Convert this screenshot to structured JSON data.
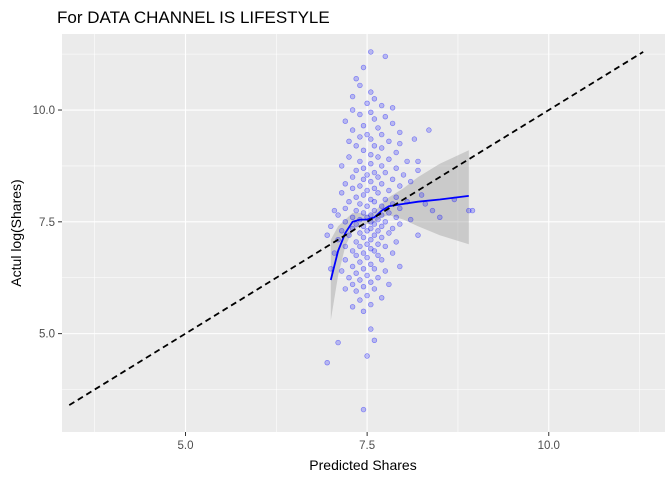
{
  "chart_data": {
    "type": "scatter",
    "title": "For DATA CHANNEL IS LIFESTYLE",
    "xlabel": "Predicted Shares",
    "ylabel": "Actul log(Shares)",
    "xlim": [
      3.3,
      11.6
    ],
    "ylim": [
      2.8,
      11.7
    ],
    "x_ticks": [
      5.0,
      7.5,
      10.0
    ],
    "x_tick_labels": [
      "5.0",
      "7.5",
      "10.0"
    ],
    "y_ticks": [
      5.0,
      7.5,
      10.0
    ],
    "y_tick_labels": [
      "5.0",
      "7.5",
      "10.0"
    ],
    "grid": true,
    "legend": "none",
    "colors": {
      "panel_background": "#ebebeb",
      "grid": "#ffffff",
      "points": "#0000ff",
      "smooth_line": "#0000ff",
      "confidence_band": "#999999",
      "reference_line": "#000000"
    },
    "reference_line": {
      "style": "dashed",
      "x": [
        3.4,
        11.3
      ],
      "y": [
        3.4,
        11.3
      ]
    },
    "smooth": {
      "x": [
        7.0,
        7.1,
        7.2,
        7.3,
        7.4,
        7.5,
        7.6,
        7.7,
        7.8,
        8.0,
        8.2,
        8.5,
        8.9
      ],
      "y": [
        6.2,
        6.85,
        7.25,
        7.5,
        7.55,
        7.55,
        7.6,
        7.75,
        7.85,
        7.9,
        7.95,
        8.0,
        8.08
      ],
      "se_lower": [
        5.3,
        6.3,
        6.95,
        7.3,
        7.4,
        7.45,
        7.48,
        7.6,
        7.65,
        7.55,
        7.4,
        7.2,
        7.0
      ],
      "se_upper": [
        7.1,
        7.4,
        7.55,
        7.7,
        7.7,
        7.65,
        7.72,
        7.9,
        8.05,
        8.25,
        8.5,
        8.8,
        9.1
      ]
    },
    "points": [
      [
        7.55,
        11.3
      ],
      [
        7.75,
        11.2
      ],
      [
        7.45,
        10.95
      ],
      [
        7.35,
        10.7
      ],
      [
        7.4,
        10.55
      ],
      [
        7.55,
        10.4
      ],
      [
        7.3,
        10.3
      ],
      [
        7.6,
        10.25
      ],
      [
        7.5,
        10.15
      ],
      [
        7.7,
        10.1
      ],
      [
        7.85,
        10.05
      ],
      [
        7.3,
        10.0
      ],
      [
        7.55,
        9.95
      ],
      [
        7.4,
        9.9
      ],
      [
        7.75,
        9.85
      ],
      [
        7.6,
        9.8
      ],
      [
        7.2,
        9.75
      ],
      [
        7.85,
        9.7
      ],
      [
        7.45,
        9.65
      ],
      [
        7.65,
        9.6
      ],
      [
        8.35,
        9.55
      ],
      [
        7.3,
        9.55
      ],
      [
        7.95,
        9.5
      ],
      [
        7.5,
        9.45
      ],
      [
        7.7,
        9.45
      ],
      [
        7.4,
        9.4
      ],
      [
        8.15,
        9.35
      ],
      [
        7.55,
        9.35
      ],
      [
        7.8,
        9.3
      ],
      [
        7.25,
        9.3
      ],
      [
        7.95,
        9.25
      ],
      [
        7.6,
        9.2
      ],
      [
        7.35,
        9.2
      ],
      [
        7.7,
        9.15
      ],
      [
        7.45,
        9.1
      ],
      [
        7.9,
        9.05
      ],
      [
        7.55,
        9.0
      ],
      [
        7.25,
        8.95
      ],
      [
        7.65,
        8.95
      ],
      [
        7.8,
        8.9
      ],
      [
        8.05,
        8.85
      ],
      [
        7.4,
        8.85
      ],
      [
        7.55,
        8.8
      ],
      [
        7.15,
        8.75
      ],
      [
        7.7,
        8.75
      ],
      [
        7.9,
        8.7
      ],
      [
        7.45,
        8.7
      ],
      [
        8.2,
        8.65
      ],
      [
        7.35,
        8.65
      ],
      [
        7.6,
        8.6
      ],
      [
        7.75,
        8.6
      ],
      [
        7.5,
        8.55
      ],
      [
        8.0,
        8.55
      ],
      [
        7.3,
        8.5
      ],
      [
        7.65,
        8.5
      ],
      [
        7.85,
        8.45
      ],
      [
        7.45,
        8.45
      ],
      [
        7.55,
        8.4
      ],
      [
        8.1,
        8.4
      ],
      [
        7.2,
        8.35
      ],
      [
        7.7,
        8.35
      ],
      [
        7.4,
        8.3
      ],
      [
        7.95,
        8.3
      ],
      [
        7.6,
        8.25
      ],
      [
        7.3,
        8.25
      ],
      [
        7.8,
        8.2
      ],
      [
        7.5,
        8.2
      ],
      [
        7.15,
        8.15
      ],
      [
        7.65,
        8.15
      ],
      [
        8.25,
        8.1
      ],
      [
        7.45,
        8.1
      ],
      [
        7.9,
        8.05
      ],
      [
        7.35,
        8.05
      ],
      [
        7.55,
        8.0
      ],
      [
        7.75,
        8.0
      ],
      [
        7.25,
        7.95
      ],
      [
        7.6,
        7.95
      ],
      [
        8.05,
        7.95
      ],
      [
        7.4,
        7.9
      ],
      [
        7.85,
        7.9
      ],
      [
        7.5,
        7.85
      ],
      [
        7.7,
        7.85
      ],
      [
        7.2,
        7.8
      ],
      [
        7.95,
        7.8
      ],
      [
        7.35,
        7.75
      ],
      [
        7.6,
        7.75
      ],
      [
        8.4,
        7.75
      ],
      [
        7.45,
        7.7
      ],
      [
        7.8,
        7.7
      ],
      [
        7.55,
        7.65
      ],
      [
        7.1,
        7.65
      ],
      [
        7.7,
        7.65
      ],
      [
        7.3,
        7.6
      ],
      [
        7.9,
        7.6
      ],
      [
        7.5,
        7.6
      ],
      [
        7.65,
        7.55
      ],
      [
        7.4,
        7.55
      ],
      [
        8.1,
        7.55
      ],
      [
        7.2,
        7.5
      ],
      [
        7.55,
        7.5
      ],
      [
        7.75,
        7.5
      ],
      [
        7.35,
        7.45
      ],
      [
        7.6,
        7.45
      ],
      [
        7.95,
        7.45
      ],
      [
        7.45,
        7.4
      ],
      [
        7.0,
        7.4
      ],
      [
        7.7,
        7.4
      ],
      [
        7.3,
        7.35
      ],
      [
        7.55,
        7.35
      ],
      [
        7.85,
        7.35
      ],
      [
        7.15,
        7.3
      ],
      [
        7.5,
        7.3
      ],
      [
        7.65,
        7.3
      ],
      [
        7.4,
        7.25
      ],
      [
        7.8,
        7.25
      ],
      [
        7.25,
        7.2
      ],
      [
        7.6,
        7.2
      ],
      [
        8.2,
        7.2
      ],
      [
        7.45,
        7.15
      ],
      [
        7.7,
        7.15
      ],
      [
        7.1,
        7.1
      ],
      [
        7.55,
        7.1
      ],
      [
        7.35,
        7.05
      ],
      [
        7.9,
        7.05
      ],
      [
        7.5,
        7.0
      ],
      [
        7.65,
        7.0
      ],
      [
        7.2,
        6.95
      ],
      [
        7.4,
        6.95
      ],
      [
        7.75,
        6.95
      ],
      [
        7.55,
        6.9
      ],
      [
        7.3,
        6.85
      ],
      [
        7.6,
        6.85
      ],
      [
        7.05,
        6.8
      ],
      [
        7.45,
        6.8
      ],
      [
        7.85,
        6.8
      ],
      [
        7.35,
        6.75
      ],
      [
        7.65,
        6.75
      ],
      [
        7.5,
        6.7
      ],
      [
        7.2,
        6.65
      ],
      [
        7.7,
        6.65
      ],
      [
        7.4,
        6.6
      ],
      [
        7.55,
        6.55
      ],
      [
        7.3,
        6.5
      ],
      [
        7.95,
        6.5
      ],
      [
        7.45,
        6.45
      ],
      [
        7.6,
        6.45
      ],
      [
        7.15,
        6.4
      ],
      [
        7.75,
        6.4
      ],
      [
        7.35,
        6.35
      ],
      [
        7.5,
        6.3
      ],
      [
        7.25,
        6.25
      ],
      [
        7.65,
        6.25
      ],
      [
        7.4,
        6.2
      ],
      [
        7.55,
        6.15
      ],
      [
        7.3,
        6.1
      ],
      [
        7.8,
        6.1
      ],
      [
        7.45,
        6.05
      ],
      [
        7.2,
        6.0
      ],
      [
        7.6,
        6.0
      ],
      [
        7.35,
        5.95
      ],
      [
        7.5,
        5.85
      ],
      [
        7.7,
        5.8
      ],
      [
        7.4,
        5.75
      ],
      [
        7.55,
        5.65
      ],
      [
        7.3,
        5.6
      ],
      [
        7.45,
        5.5
      ],
      [
        8.3,
        7.9
      ],
      [
        8.5,
        7.6
      ],
      [
        8.9,
        7.75
      ],
      [
        8.95,
        7.75
      ],
      [
        8.7,
        8.0
      ],
      [
        8.2,
        8.85
      ],
      [
        7.05,
        7.75
      ],
      [
        6.95,
        7.2
      ],
      [
        7.0,
        6.45
      ],
      [
        7.55,
        5.1
      ],
      [
        7.6,
        4.85
      ],
      [
        7.1,
        4.8
      ],
      [
        7.5,
        4.5
      ],
      [
        6.95,
        4.35
      ],
      [
        7.45,
        3.3
      ]
    ]
  }
}
